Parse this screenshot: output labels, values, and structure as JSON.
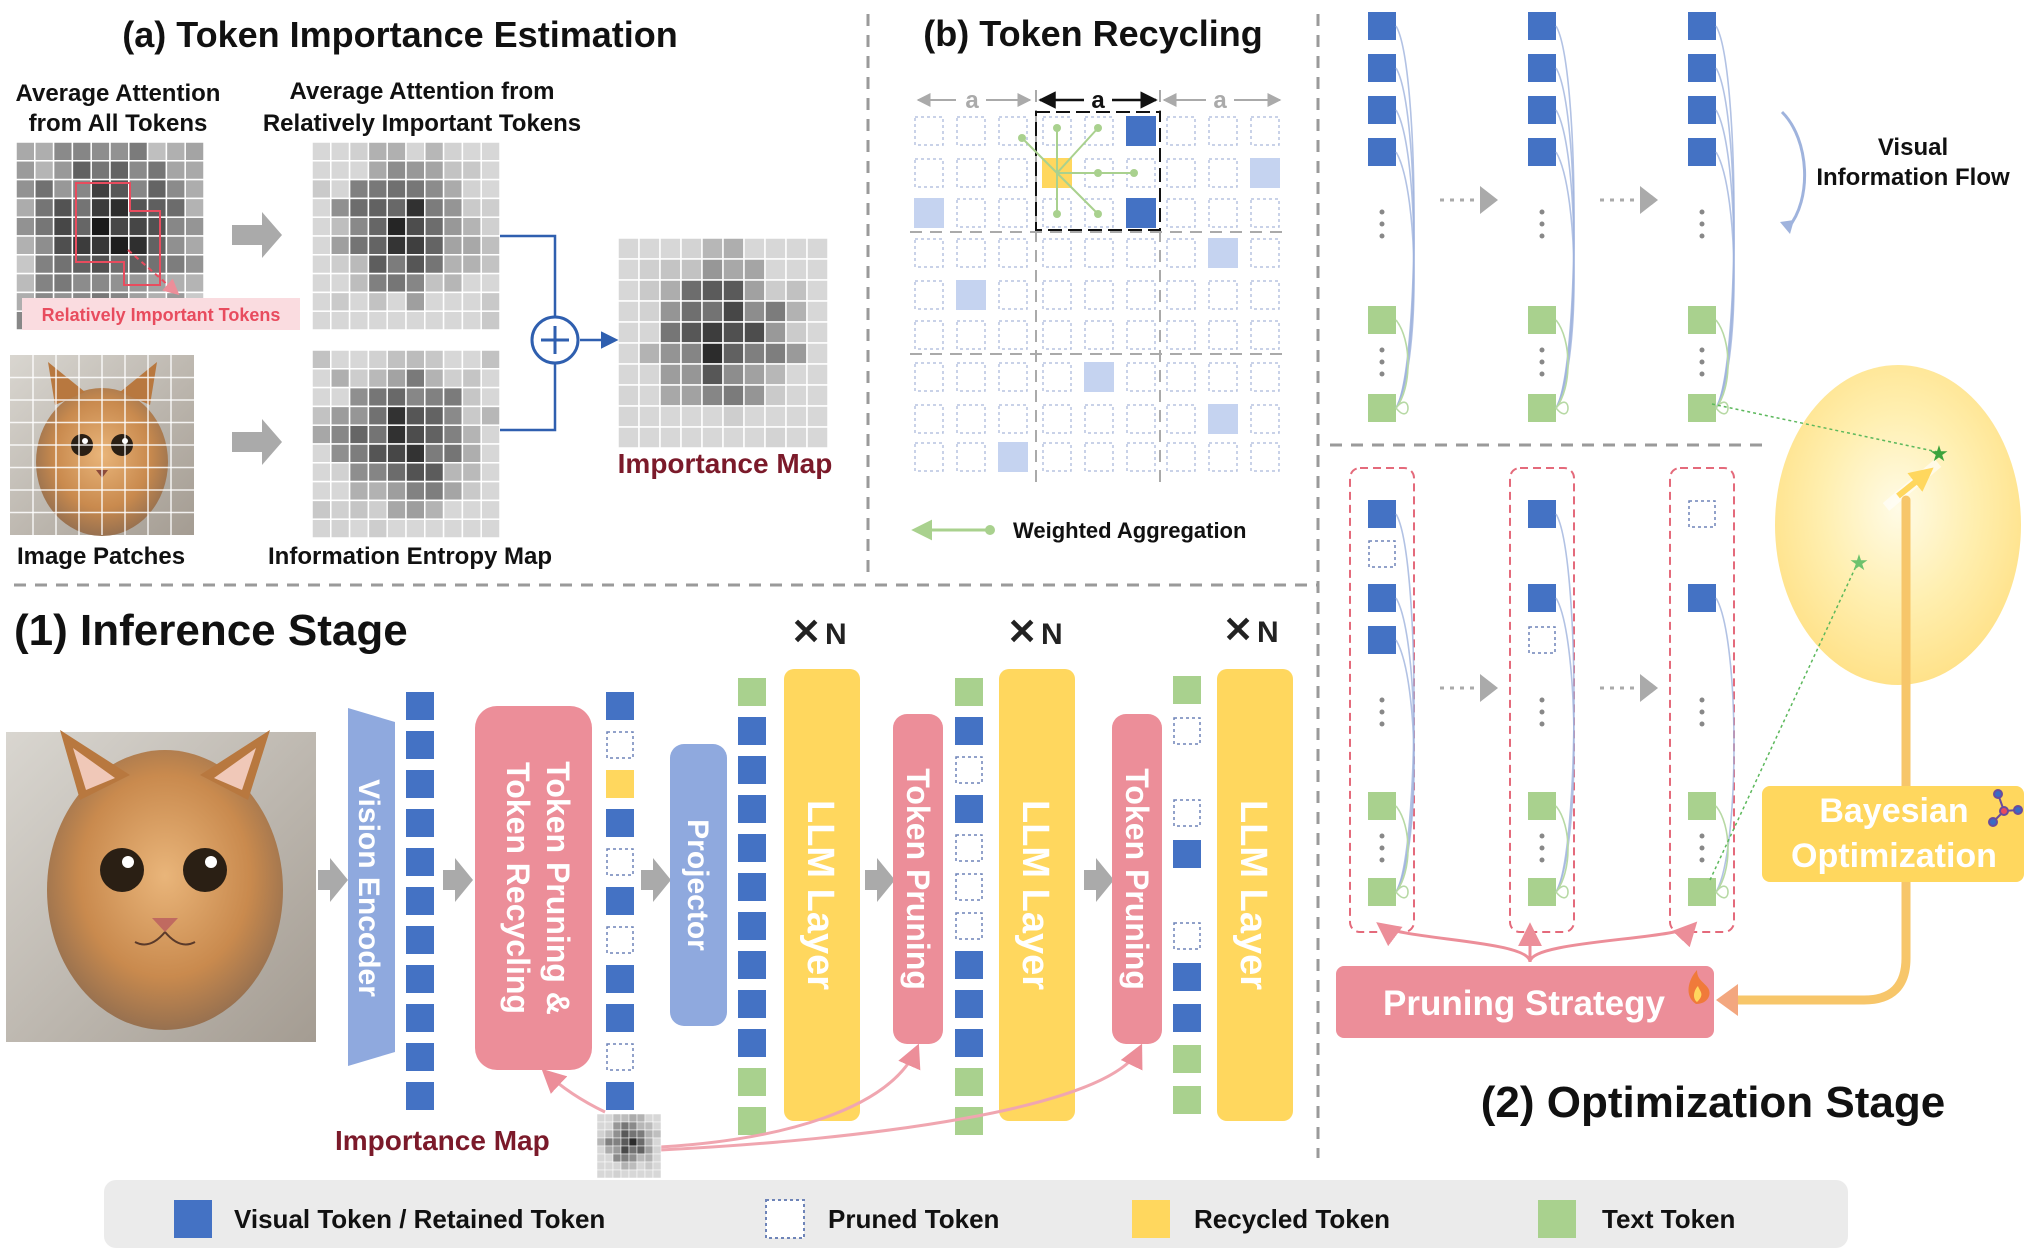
{
  "panel_a": {
    "title": "(a) Token Importance Estimation",
    "label_avg_all_1": "Average Attention",
    "label_avg_all_2": "from All Tokens",
    "label_avg_imp_1": "Average Attention from",
    "label_avg_imp_2": "Relatively Important Tokens",
    "tag_important": "Relatively Important Tokens",
    "label_patches": "Image Patches",
    "label_entropy": "Information Entropy Map",
    "label_importance_map": "Importance Map"
  },
  "panel_b": {
    "title": "(b) Token Recycling",
    "dim_label": "a",
    "legend_aggregation": "Weighted Aggregation"
  },
  "inference": {
    "title": "(1) Inference Stage",
    "vision_encoder": "Vision Encoder",
    "prune_recycle_1": "Token Pruning &",
    "prune_recycle_2": "Token Recycling",
    "projector": "Projector",
    "llm_layer": "LLM Layer",
    "token_pruning": "Token Pruning",
    "repeat": "N",
    "importance_map": "Importance Map"
  },
  "optimization": {
    "title": "(2) Optimization Stage",
    "visual_flow_1": "Visual",
    "visual_flow_2": "Information Flow",
    "bayes_1": "Bayesian",
    "bayes_2": "Optimization",
    "pruning_strategy": "Pruning Strategy"
  },
  "legend": {
    "visual": "Visual Token / Retained Token",
    "pruned": "Pruned Token",
    "recycled": "Recycled Token",
    "text": "Text Token"
  },
  "colors": {
    "visual": "#4472C4",
    "pruned": "#8FA4CF",
    "recycled": "#FFD75E",
    "text": "#A9D18E",
    "pink": "#EC8E99",
    "title_red": "#7B1A2A"
  }
}
